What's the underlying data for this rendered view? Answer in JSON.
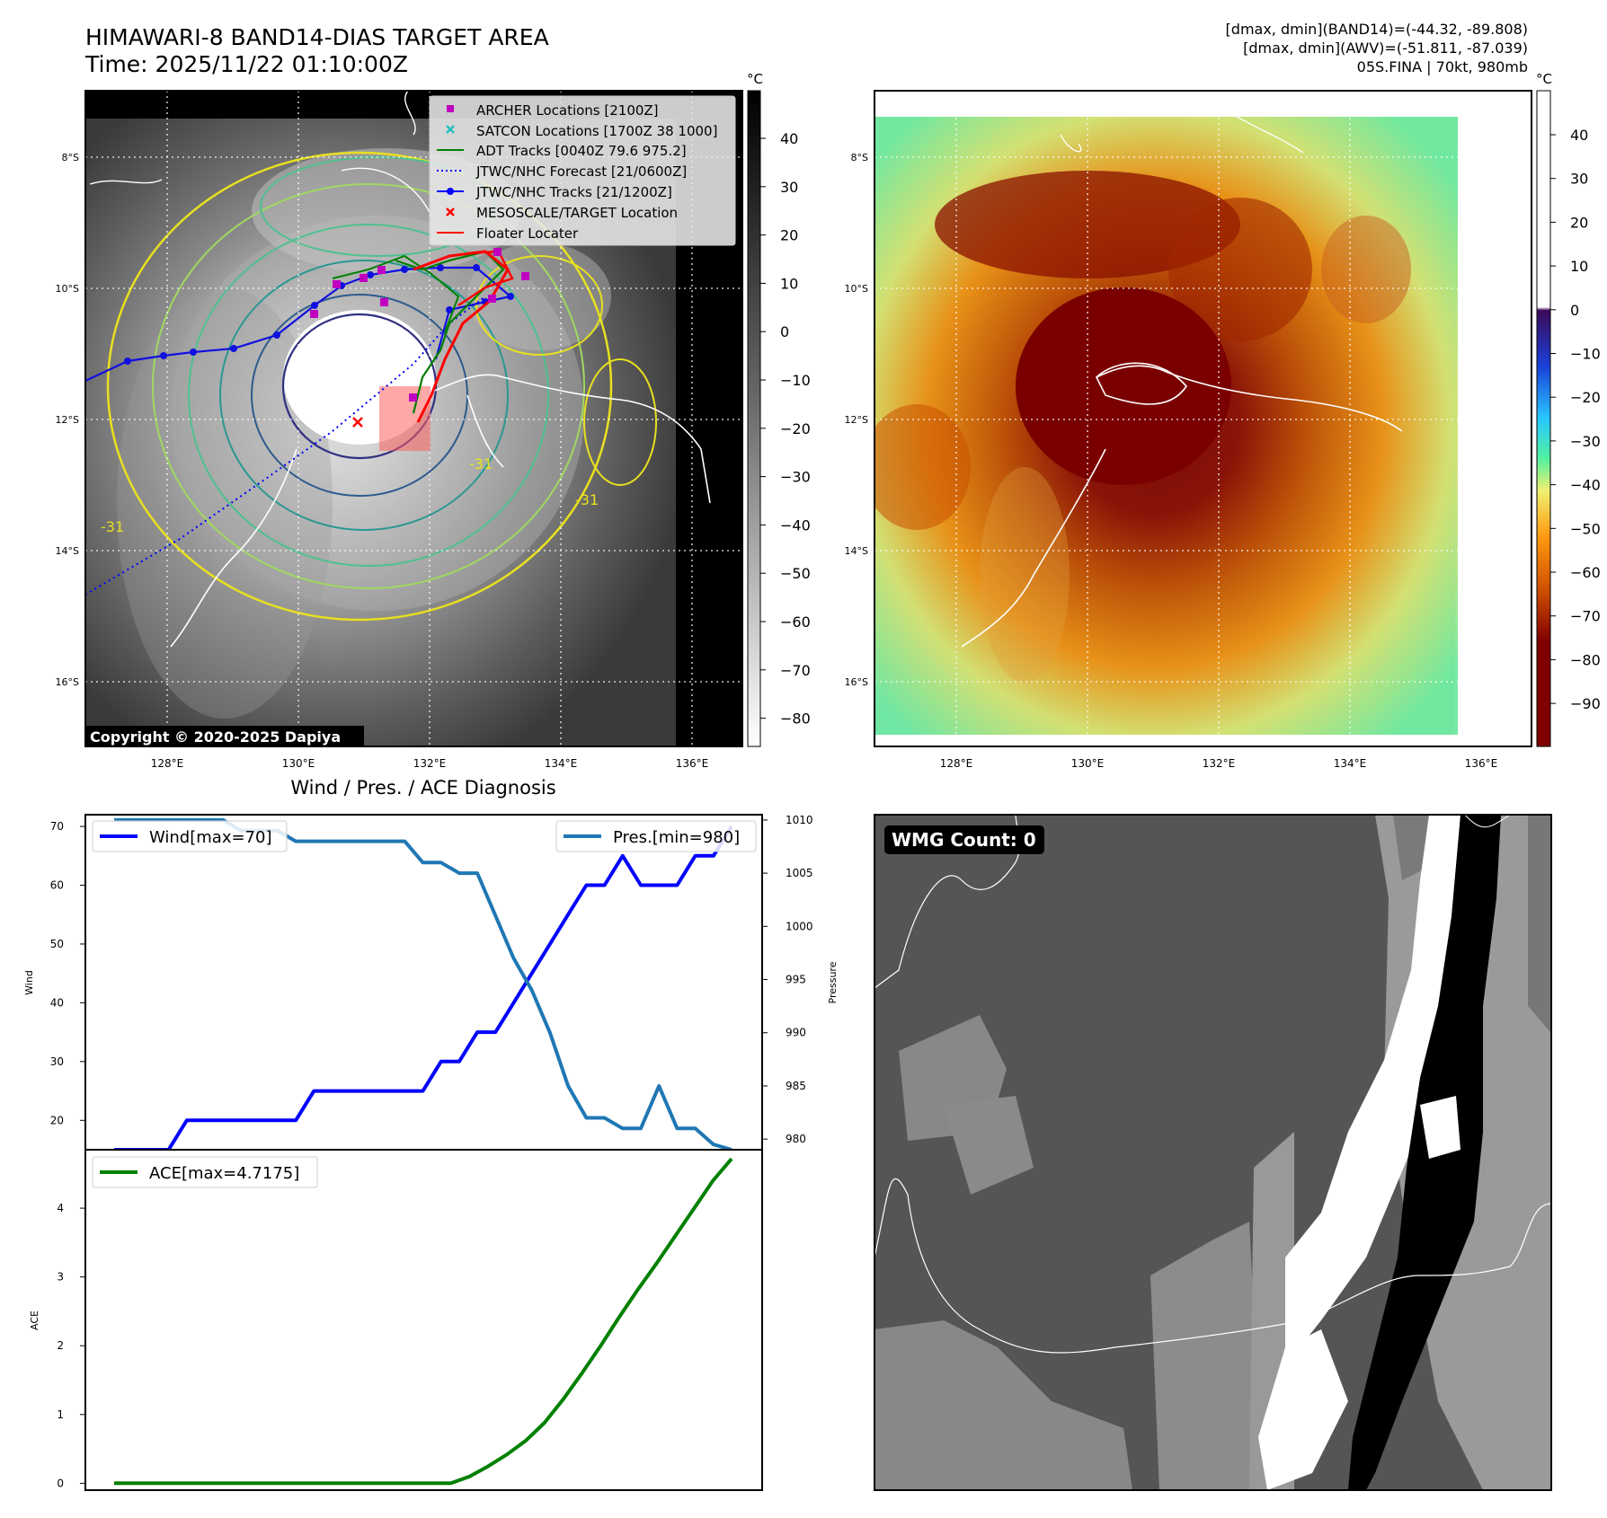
{
  "header": {
    "title": "HIMAWARI-8 BAND14-DIAS TARGET AREA",
    "time": "Time: 2025/11/22 01:10:00Z",
    "stats_band14": "[dmax, dmin](BAND14)=(-44.32, -89.808)",
    "stats_awv": "[dmax, dmin](AWV)=(-51.811, -87.039)",
    "storm": "05S.FINA | 70kt, 980mb"
  },
  "map": {
    "lon_ticks": [
      "128°E",
      "130°E",
      "132°E",
      "134°E",
      "136°E"
    ],
    "lat_ticks": [
      "8°S",
      "10°S",
      "12°S",
      "14°S",
      "16°S"
    ],
    "copyright": "Copyright © 2020-2025 Dapiya",
    "contour_label": "-31",
    "legend": [
      {
        "label": "ARCHER Locations [2100Z]",
        "color": "#c000c0",
        "marker": "square"
      },
      {
        "label": "SATCON Locations [1700Z 38 1000]",
        "color": "#20c0c0",
        "marker": "x"
      },
      {
        "label": "ADT Tracks [0040Z 79.6 975.2]",
        "color": "#008000",
        "marker": "line"
      },
      {
        "label": "JTWC/NHC Forecast [21/0600Z]",
        "color": "#0000ff",
        "marker": "dotted"
      },
      {
        "label": "JTWC/NHC Tracks [21/1200Z]",
        "color": "#0000ff",
        "marker": "line-dot"
      },
      {
        "label": "MESOSCALE/TARGET Location",
        "color": "#ff0000",
        "marker": "x"
      },
      {
        "label": "Floater Locater",
        "color": "#ff0000",
        "marker": "line"
      }
    ]
  },
  "colorbar_gray": {
    "unit": "°C",
    "ticks": [
      "40",
      "30",
      "20",
      "10",
      "0",
      "−10",
      "−20",
      "−30",
      "−40",
      "−50",
      "−60",
      "−70",
      "−80"
    ]
  },
  "colorbar_awv": {
    "unit": "°C",
    "ticks": [
      "40",
      "30",
      "20",
      "10",
      "0",
      "−10",
      "−20",
      "−30",
      "−40",
      "−50",
      "−60",
      "−70",
      "−80",
      "−90"
    ]
  },
  "wmg": {
    "label": "WMG Count: 0"
  },
  "chart_data": [
    {
      "type": "line",
      "title": "Wind / Pres. / ACE Diagnosis",
      "ylabel": "Wind",
      "ylim": [
        15,
        72
      ],
      "yticks": [
        20,
        30,
        40,
        50,
        60,
        70
      ],
      "series": [
        {
          "name": "Wind[max=70]",
          "color": "#0000ff",
          "values": [
            15,
            15,
            15,
            15,
            20,
            20,
            20,
            20,
            20,
            20,
            20,
            25,
            25,
            25,
            25,
            25,
            25,
            25,
            30,
            30,
            35,
            35,
            40,
            45,
            50,
            55,
            60,
            60,
            65,
            60,
            60,
            60,
            65,
            65,
            70
          ]
        }
      ]
    },
    {
      "type": "line",
      "ylabel": "Pressure",
      "ylim": [
        979,
        1010.5
      ],
      "yticks": [
        980,
        985,
        990,
        995,
        1000,
        1005,
        1010
      ],
      "series": [
        {
          "name": "Pres.[min=980]",
          "color": "#1f77b4",
          "values": [
            1010,
            1010,
            1010,
            1010,
            1010,
            1010,
            1010,
            1009,
            1009,
            1009,
            1008,
            1008,
            1008,
            1008,
            1008,
            1008,
            1008,
            1006,
            1006,
            1005,
            1005,
            1001,
            997,
            994,
            990,
            985,
            982,
            982,
            981,
            981,
            985,
            981,
            981,
            979.5,
            979
          ]
        }
      ]
    },
    {
      "type": "line",
      "ylabel": "ACE",
      "ylim": [
        -0.1,
        4.85
      ],
      "yticks": [
        0,
        1,
        2,
        3,
        4
      ],
      "series": [
        {
          "name": "ACE[max=4.7175]",
          "color": "#008000",
          "values": [
            0,
            0,
            0,
            0,
            0,
            0,
            0,
            0,
            0,
            0,
            0,
            0,
            0,
            0,
            0,
            0,
            0,
            0,
            0,
            0.1,
            0.25,
            0.42,
            0.62,
            0.88,
            1.22,
            1.6,
            2.0,
            2.42,
            2.82,
            3.2,
            3.6,
            4.0,
            4.4,
            4.7175
          ]
        }
      ]
    }
  ]
}
